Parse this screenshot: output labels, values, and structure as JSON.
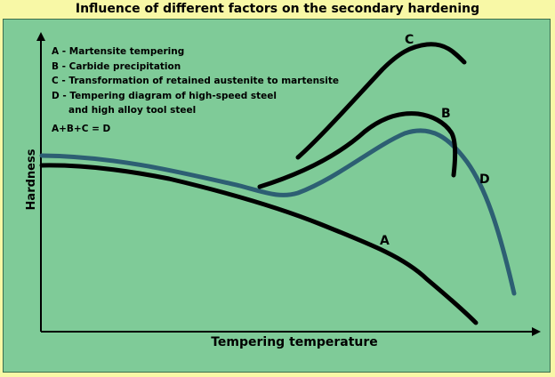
{
  "title": "Influence of different factors on the secondary hardening",
  "axes": {
    "ylabel": "Hardness",
    "xlabel": "Tempering temperature"
  },
  "legend": {
    "a": "A - Martensite tempering",
    "b": "B - Carbide precipitation",
    "c": "C - Transformation of retained austenite to martensite",
    "d_line1": "D - Tempering diagram of high-speed steel",
    "d_line2": "and high alloy tool steel",
    "equation": "A+B+C = D"
  },
  "curve_labels": {
    "a": "A",
    "b": "B",
    "c": "C",
    "d": "D"
  },
  "colors": {
    "background": "#f8f8a6",
    "panel": "#7fcb98",
    "curve_abc": "#000000",
    "curve_d": "#2d5f73"
  }
}
